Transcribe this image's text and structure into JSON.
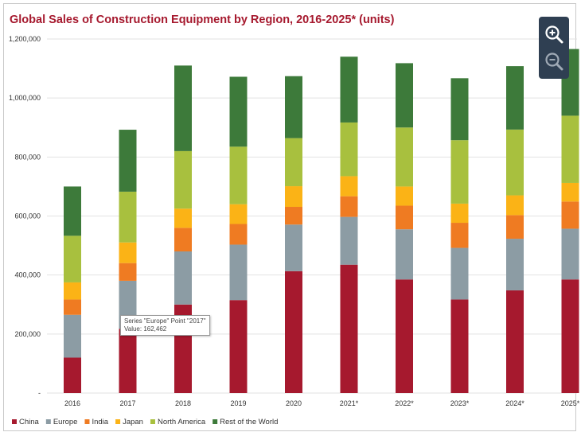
{
  "chart_data": {
    "type": "bar",
    "stacked": true,
    "title": "Global Sales of Construction Equipment by Region, 2016-2025* (units)",
    "categories": [
      "2016",
      "2017",
      "2018",
      "2019",
      "2020",
      "2021*",
      "2022*",
      "2023*",
      "2024*",
      "2025*"
    ],
    "y_ticks": [
      "-",
      "200,000",
      "400,000",
      "600,000",
      "800,000",
      "1,000,000",
      "1,200,000"
    ],
    "ylim": [
      0,
      1200000
    ],
    "grid": true,
    "legend_position": "bottom-left",
    "series": [
      {
        "name": "China",
        "color": "#a6192e",
        "values": [
          120000,
          218000,
          300000,
          315000,
          413000,
          435000,
          385000,
          317000,
          348000,
          385000
        ]
      },
      {
        "name": "Europe",
        "color": "#8c9ca4",
        "values": [
          145000,
          162462,
          180000,
          188000,
          158000,
          162000,
          170000,
          175000,
          175000,
          172000
        ]
      },
      {
        "name": "India",
        "color": "#ef7b22",
        "values": [
          52000,
          60000,
          80000,
          70000,
          60000,
          70000,
          80000,
          85000,
          80000,
          92000
        ]
      },
      {
        "name": "Japan",
        "color": "#fbb316",
        "values": [
          58000,
          70000,
          65000,
          67000,
          70000,
          68000,
          65000,
          65000,
          67000,
          63000
        ]
      },
      {
        "name": "North America",
        "color": "#a8c03e",
        "values": [
          158000,
          172000,
          195000,
          195000,
          163000,
          182000,
          200000,
          215000,
          223000,
          228000
        ]
      },
      {
        "name": "Rest of the World",
        "color": "#3d7a3a",
        "values": [
          167000,
          210000,
          290000,
          237000,
          210000,
          223000,
          218000,
          210000,
          215000,
          226000
        ]
      }
    ],
    "tooltip": {
      "line1": "Series \"Europe\" Point \"2017\"",
      "line2": "Value: 162,462"
    }
  },
  "icons": {
    "zoom_in": "zoom-in-icon",
    "zoom_out": "zoom-out-icon"
  }
}
